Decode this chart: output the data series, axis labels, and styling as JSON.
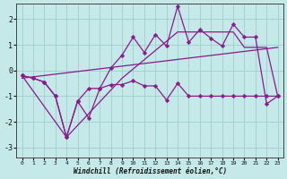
{
  "xlabel": "Windchill (Refroidissement éolien,°C)",
  "xlim": [
    -0.5,
    23.5
  ],
  "ylim": [
    -3.4,
    2.6
  ],
  "yticks": [
    -3,
    -2,
    -1,
    0,
    1,
    2
  ],
  "xticks": [
    0,
    1,
    2,
    3,
    4,
    5,
    6,
    7,
    8,
    9,
    10,
    11,
    12,
    13,
    14,
    15,
    16,
    17,
    18,
    19,
    20,
    21,
    22,
    23
  ],
  "bg_color": "#c5e8e8",
  "grid_color": "#9ecece",
  "line_color": "#8b1a8b",
  "line1_y": [
    -0.2,
    -0.3,
    -0.45,
    -1.0,
    -2.6,
    -1.2,
    -1.85,
    -0.7,
    -0.55,
    -0.55,
    -0.4,
    -0.6,
    -0.6,
    -1.15,
    -0.5,
    -1.0,
    -1.0,
    -1.0,
    -1.0,
    -1.0,
    -1.0,
    -1.0,
    -1.0,
    -1.0
  ],
  "line2_y": [
    -0.2,
    -0.3,
    -0.45,
    -1.0,
    -2.6,
    -1.2,
    -0.7,
    -0.7,
    0.1,
    0.6,
    1.3,
    0.7,
    1.4,
    0.95,
    2.5,
    1.1,
    1.6,
    1.25,
    0.95,
    1.8,
    1.3,
    1.3,
    -1.3,
    -1.0
  ],
  "line3_x": [
    0,
    4,
    9,
    14,
    19,
    20,
    22,
    23
  ],
  "line3_y": [
    -0.2,
    -2.6,
    -0.3,
    1.5,
    1.5,
    0.9,
    0.9,
    -1.0
  ],
  "line4_x": [
    0,
    23
  ],
  "line4_y": [
    -0.3,
    0.9
  ],
  "markersize": 2.5,
  "linewidth": 0.9
}
